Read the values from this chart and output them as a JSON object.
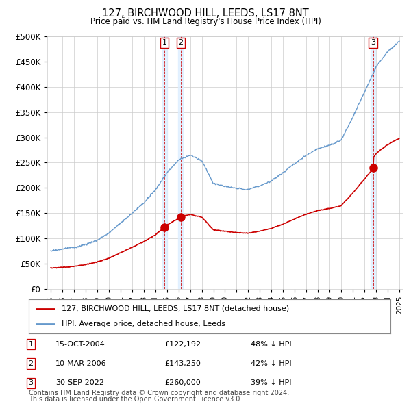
{
  "title": "127, BIRCHWOOD HILL, LEEDS, LS17 8NT",
  "subtitle": "Price paid vs. HM Land Registry's House Price Index (HPI)",
  "ylabel_ticks": [
    "£0",
    "£50K",
    "£100K",
    "£150K",
    "£200K",
    "£250K",
    "£300K",
    "£350K",
    "£400K",
    "£450K",
    "£500K"
  ],
  "ylim": [
    0,
    500000
  ],
  "xlim_start": 1994.7,
  "xlim_end": 2025.3,
  "transactions": [
    {
      "label": "1",
      "date": "15-OCT-2004",
      "price": 122192,
      "pct": "48%",
      "year": 2004.79
    },
    {
      "label": "2",
      "date": "10-MAR-2006",
      "price": 143250,
      "pct": "42%",
      "year": 2006.19
    },
    {
      "label": "3",
      "date": "30-SEP-2022",
      "price": 260000,
      "pct": "39%",
      "year": 2022.75
    }
  ],
  "legend_line1": "127, BIRCHWOOD HILL, LEEDS, LS17 8NT (detached house)",
  "legend_line2": "HPI: Average price, detached house, Leeds",
  "footnote1": "Contains HM Land Registry data © Crown copyright and database right 2024.",
  "footnote2": "This data is licensed under the Open Government Licence v3.0.",
  "red_color": "#cc0000",
  "blue_color": "#6699cc",
  "bg_color": "#ffffff",
  "grid_color": "#cccccc",
  "shade_color": "#ddeeff"
}
